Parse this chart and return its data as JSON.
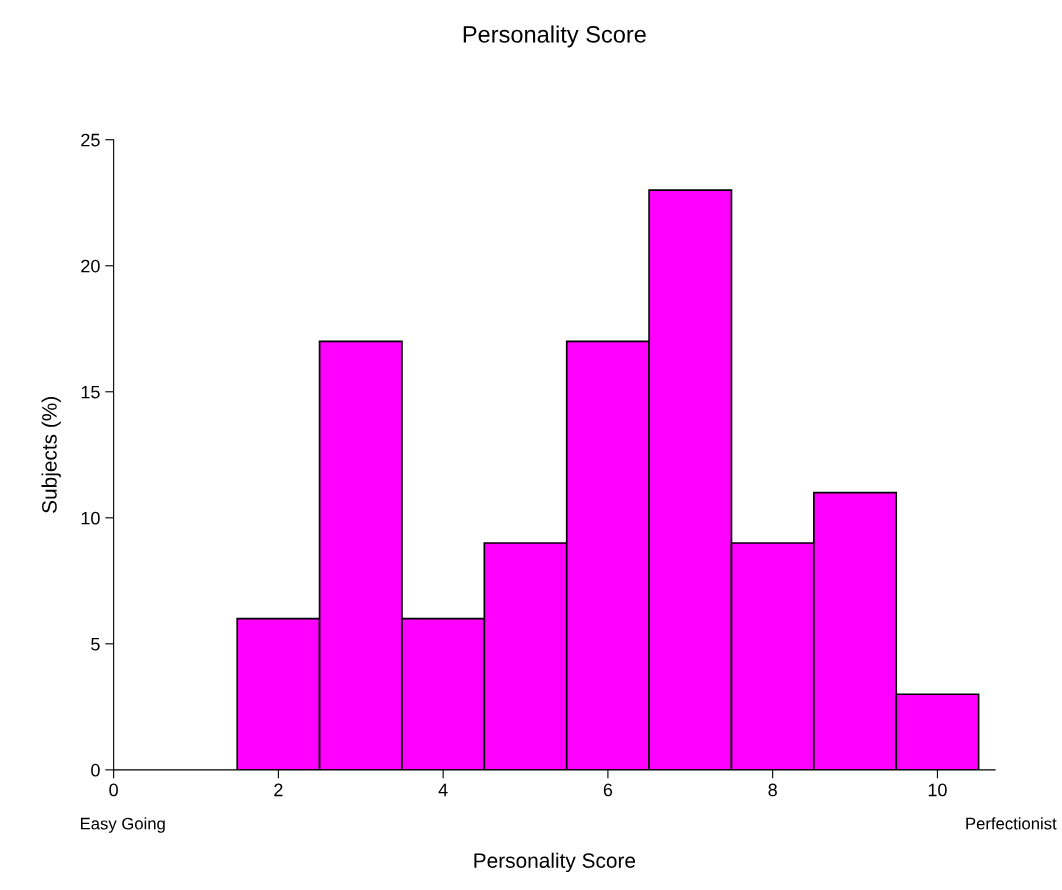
{
  "chart_data": {
    "type": "histogram",
    "title": "Personality Score",
    "xlabel": "Personality Score",
    "ylabel": "Subjects (%)",
    "bins": [
      1.5,
      2.5,
      3.5,
      4.5,
      5.5,
      6.5,
      7.5,
      8.5,
      9.5,
      10.5
    ],
    "values": [
      6,
      17,
      6,
      9,
      17,
      23,
      9,
      11,
      3
    ],
    "color": "#ff00ff",
    "xlim": [
      0,
      10.7
    ],
    "xticks": [
      0,
      2,
      4,
      6,
      8,
      10
    ],
    "ylim": [
      0,
      25
    ],
    "yticks": [
      0,
      5,
      10,
      15,
      20,
      25
    ],
    "grid": false,
    "annotations": [
      "Easy Going",
      "Perfectionist"
    ]
  }
}
